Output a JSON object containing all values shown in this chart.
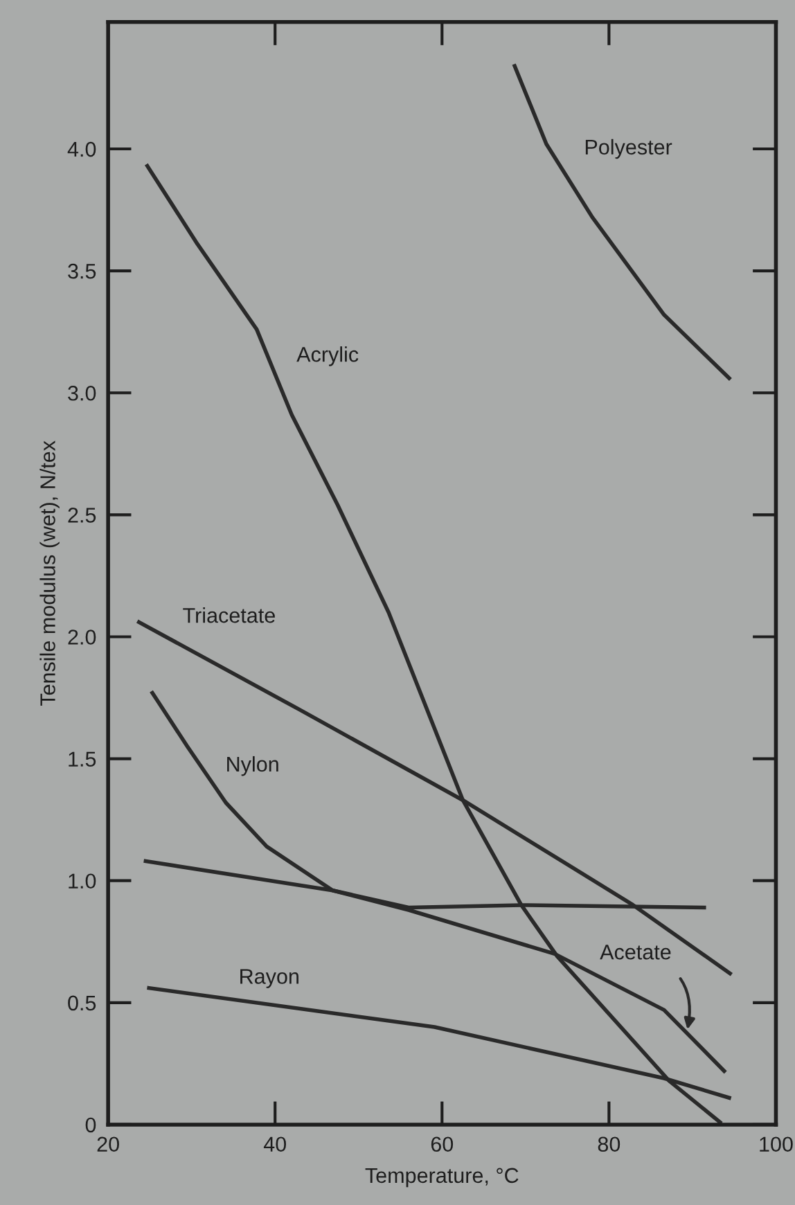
{
  "chart_data": {
    "type": "line",
    "xlabel": "Temperature, °C",
    "ylabel": "Tensile modulus (wet), N/tex",
    "xlim": [
      20,
      100
    ],
    "xticks": [
      20,
      40,
      60,
      80,
      100
    ],
    "ylim": [
      0,
      4.52
    ],
    "yticks": [
      0,
      0.5,
      {
        "value": 1.0,
        "label": "1.0"
      },
      1.5,
      {
        "value": 2.0,
        "label": "2.0"
      },
      2.5,
      {
        "value": 3.0,
        "label": "3.0"
      },
      3.5,
      {
        "value": 4.0,
        "label": "4.0"
      }
    ],
    "grid": false,
    "legend": false,
    "marker": "none",
    "line_style": "solid",
    "series": [
      {
        "name": "Polyester",
        "color": "#2a2a2a",
        "x": [
          68.7,
          72.5,
          78.0,
          86.6,
          94.4
        ],
        "values": [
          4.34,
          4.02,
          3.72,
          3.32,
          3.06
        ]
      },
      {
        "name": "Acrylic",
        "color": "#2a2a2a",
        "x": [
          24.7,
          30.7,
          37.8,
          42.0,
          47.5,
          53.6,
          62.5,
          69.5,
          73.8,
          87.2,
          93.3
        ],
        "values": [
          3.93,
          3.61,
          3.26,
          2.91,
          2.54,
          2.1,
          1.33,
          0.9,
          0.69,
          0.18,
          0.01
        ]
      },
      {
        "name": "Triacetate",
        "color": "#2a2a2a",
        "x": [
          23.7,
          43.0,
          62.5,
          74.4,
          82.9,
          94.5
        ],
        "values": [
          2.06,
          1.7,
          1.33,
          1.08,
          0.9,
          0.62
        ]
      },
      {
        "name": "Nylon",
        "color": "#2a2a2a",
        "x": [
          25.3,
          29.5,
          34.1,
          39.0,
          46.9,
          56.0,
          69.5,
          91.4
        ],
        "values": [
          1.77,
          1.55,
          1.32,
          1.14,
          0.96,
          0.89,
          0.9,
          0.89
        ]
      },
      {
        "name": "Acetate",
        "color": "#2a2a2a",
        "x": [
          24.5,
          46.9,
          56.0,
          73.5,
          86.6,
          93.8
        ],
        "values": [
          1.08,
          0.96,
          0.88,
          0.7,
          0.47,
          0.22
        ]
      },
      {
        "name": "Rayon",
        "color": "#2a2a2a",
        "x": [
          24.9,
          59.1,
          86.6,
          94.4
        ],
        "values": [
          0.56,
          0.4,
          0.19,
          0.11
        ]
      }
    ]
  }
}
